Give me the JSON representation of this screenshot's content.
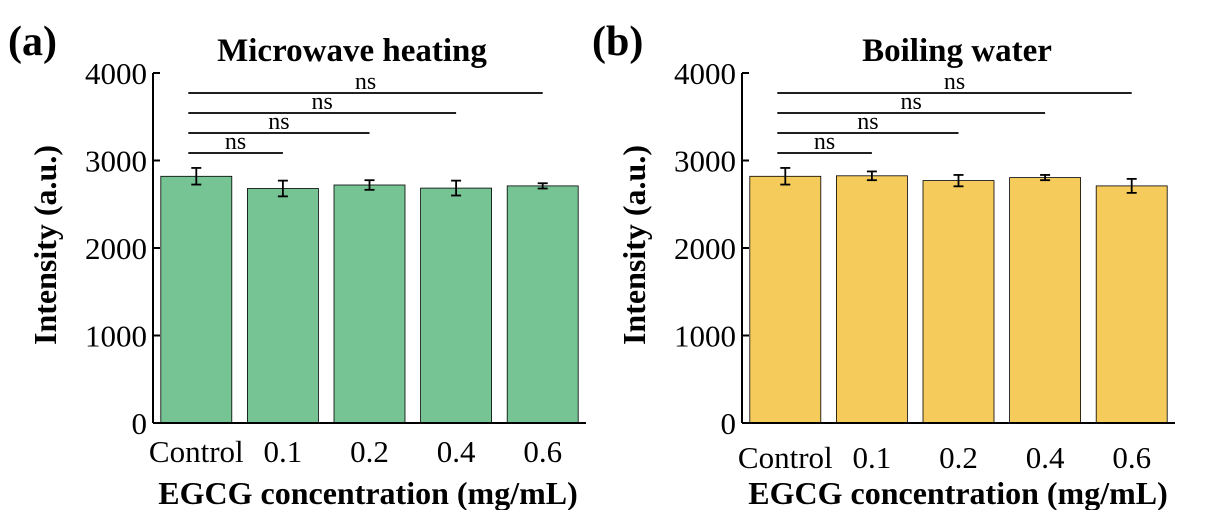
{
  "chart_data": [
    {
      "panel_label": "(a)",
      "type": "bar",
      "title": "Microwave heating",
      "xlabel": "EGCG concentration (mg/mL)",
      "ylabel": "Intensity (a.u.)",
      "categories": [
        "Control",
        "0.1",
        "0.2",
        "0.4",
        "0.6"
      ],
      "values": [
        2820,
        2680,
        2720,
        2685,
        2710
      ],
      "errors": [
        95,
        90,
        55,
        85,
        30
      ],
      "ylim": [
        0,
        4000
      ],
      "yticks": [
        "0",
        "1000",
        "2000",
        "3000",
        "4000"
      ],
      "bar_color": "#76c393",
      "significance": [
        {
          "from": "Control",
          "to": "0.1",
          "label": "ns"
        },
        {
          "from": "Control",
          "to": "0.2",
          "label": "ns"
        },
        {
          "from": "Control",
          "to": "0.4",
          "label": "ns"
        },
        {
          "from": "Control",
          "to": "0.6",
          "label": "ns"
        }
      ],
      "grid": false
    },
    {
      "panel_label": "(b)",
      "type": "bar",
      "title": "Boiling water",
      "xlabel": "EGCG concentration (mg/mL)",
      "ylabel": "Intensity (a.u.)",
      "categories": [
        "Control",
        "0.1",
        "0.2",
        "0.4",
        "0.6"
      ],
      "values": [
        2820,
        2825,
        2770,
        2805,
        2710
      ],
      "errors": [
        95,
        50,
        65,
        30,
        80
      ],
      "ylim": [
        0,
        4000
      ],
      "yticks": [
        "0",
        "1000",
        "2000",
        "3000",
        "4000"
      ],
      "bar_color": "#f5cb5c",
      "significance": [
        {
          "from": "Control",
          "to": "0.1",
          "label": "ns"
        },
        {
          "from": "Control",
          "to": "0.2",
          "label": "ns"
        },
        {
          "from": "Control",
          "to": "0.4",
          "label": "ns"
        },
        {
          "from": "Control",
          "to": "0.6",
          "label": "ns"
        }
      ],
      "grid": false
    }
  ]
}
